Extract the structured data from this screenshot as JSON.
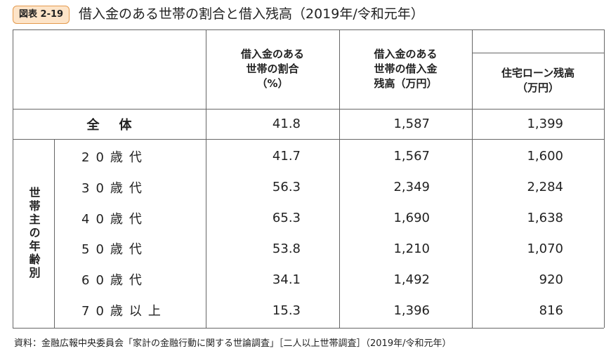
{
  "figure_label": "図表 2-19",
  "title": "借入金のある世帯の割合と借入残高（2019年/令和元年）",
  "table": {
    "headers": [
      [
        "借入金のある",
        "世帯の割合",
        "（%）"
      ],
      [
        "借入金のある",
        "世帯の借入金",
        "残高（万円）"
      ],
      [
        "住宅ローン残高",
        "（万円）"
      ]
    ],
    "total": {
      "label": "全体",
      "values": [
        "41.8",
        "1,587",
        "1,399"
      ]
    },
    "group_label": "世帯主の年齢別",
    "rows": [
      {
        "label": "20歳代",
        "values": [
          "41.7",
          "1,567",
          "1,600"
        ]
      },
      {
        "label": "30歳代",
        "values": [
          "56.3",
          "2,349",
          "2,284"
        ]
      },
      {
        "label": "40歳代",
        "values": [
          "65.3",
          "1,690",
          "1,638"
        ]
      },
      {
        "label": "50歳代",
        "values": [
          "53.8",
          "1,210",
          "1,070"
        ]
      },
      {
        "label": "60歳代",
        "values": [
          "34.1",
          "1,492",
          "920"
        ]
      },
      {
        "label": "70歳以上",
        "values": [
          "15.3",
          "1,396",
          "816"
        ]
      }
    ]
  },
  "source": "資料：金融広報中央委員会「家計の金融行動に関する世論調査」［二人以上世帯調査］（2019年/令和元年）"
}
